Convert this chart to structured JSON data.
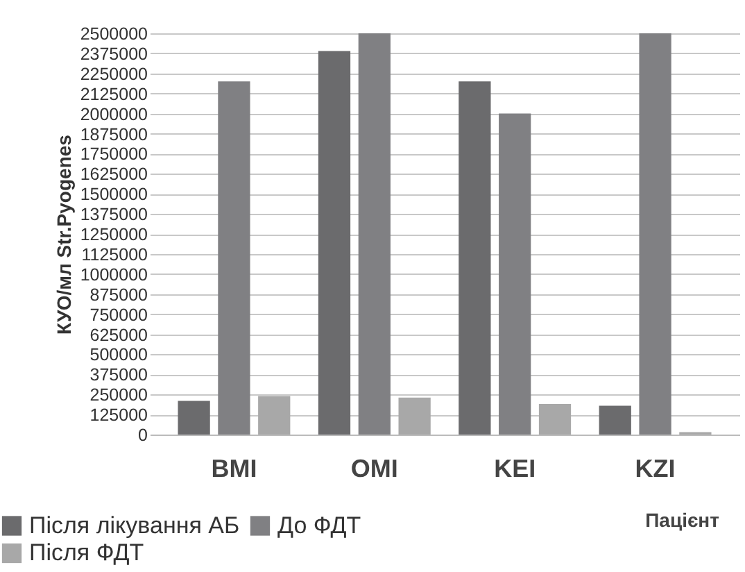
{
  "chart_data": {
    "type": "bar",
    "ylabel": "КУО/мл Str.Pyogenes",
    "xlabel": "Пацієнт",
    "categories": [
      "BMI",
      "OMI",
      "KEI",
      "KZI"
    ],
    "series": [
      {
        "name": "Після лікування АБ",
        "color": "#6b6b6d",
        "values": [
          210000,
          2390000,
          2200000,
          180000
        ]
      },
      {
        "name": "До ФДТ",
        "color": "#808083",
        "values": [
          2200000,
          2500000,
          2000000,
          2500000
        ]
      },
      {
        "name": "Після ФДТ",
        "color": "#a8a8a8",
        "values": [
          240000,
          230000,
          190000,
          15000
        ]
      }
    ],
    "ylim": [
      0,
      2500000
    ],
    "yticks": [
      0,
      125000,
      250000,
      375000,
      500000,
      625000,
      750000,
      875000,
      1000000,
      1125000,
      1250000,
      1375000,
      1500000,
      1625000,
      1750000,
      1875000,
      2000000,
      2125000,
      2250000,
      2375000,
      2500000
    ],
    "grid": "y",
    "legend": "bottom"
  }
}
